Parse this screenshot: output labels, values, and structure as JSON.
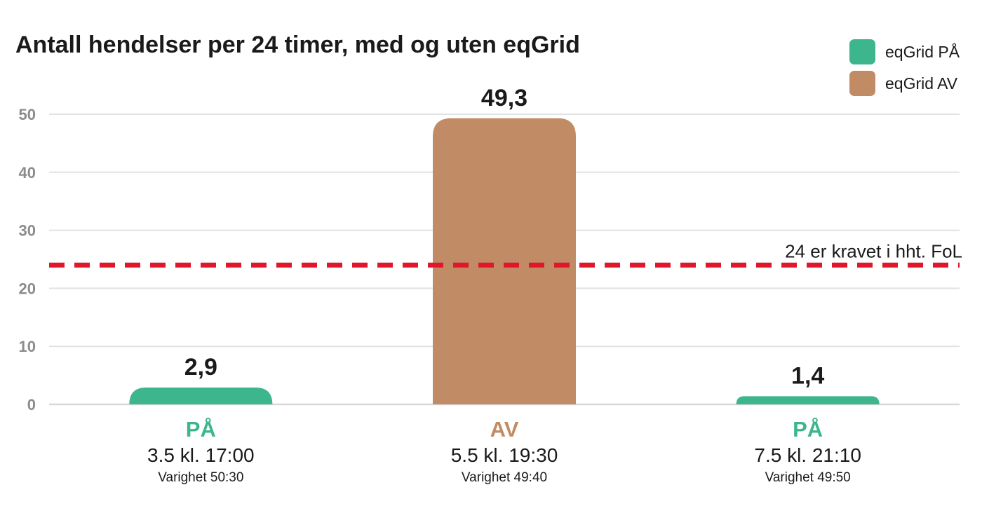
{
  "chart_data": {
    "type": "bar",
    "title": "Antall hendelser per 24 timer, med og uten eqGrid",
    "ylim": [
      0,
      50
    ],
    "yticks": [
      0,
      10,
      20,
      30,
      40,
      50
    ],
    "grid": true,
    "legend_position": "top-right",
    "legend": [
      {
        "name": "eqGrid PÅ",
        "color": "#3db58d"
      },
      {
        "name": "eqGrid AV",
        "color": "#c18c65"
      }
    ],
    "bars": [
      {
        "value": 2.9,
        "value_label": "2,9",
        "category": "PÅ",
        "date": "3.5 kl. 17:00",
        "duration": "Varighet 50:30",
        "color": "#3db58d"
      },
      {
        "value": 49.3,
        "value_label": "49,3",
        "category": "AV",
        "date": "5.5 kl. 19:30",
        "duration": "Varighet 49:40",
        "color": "#c18c65"
      },
      {
        "value": 1.4,
        "value_label": "1,4",
        "category": "PÅ",
        "date": "7.5 kl. 21:10",
        "duration": "Varighet 49:50",
        "color": "#3db58d"
      }
    ],
    "reference_line": {
      "value": 24,
      "label": "24 er kravet i hht. FoL",
      "color": "#e0162b"
    }
  }
}
